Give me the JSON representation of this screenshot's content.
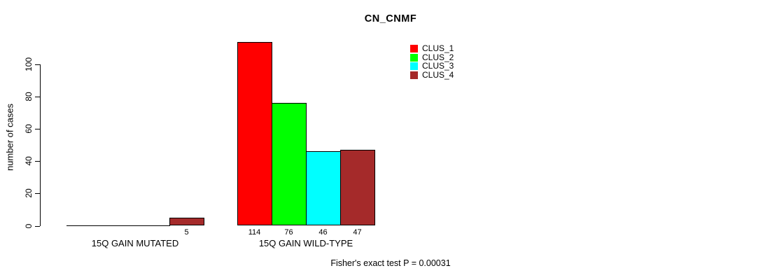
{
  "chart_data": {
    "type": "bar",
    "title": "CN_CNMF",
    "xlabel": "",
    "ylabel": "number of cases",
    "categories": [
      "15Q GAIN MUTATED",
      "15Q GAIN WILD-TYPE"
    ],
    "series": [
      {
        "name": "CLUS_1",
        "color": "#FF0000",
        "values": [
          0,
          114
        ]
      },
      {
        "name": "CLUS_2",
        "color": "#00FF00",
        "values": [
          0,
          76
        ]
      },
      {
        "name": "CLUS_3",
        "color": "#00FFFF",
        "values": [
          0,
          46
        ]
      },
      {
        "name": "CLUS_4",
        "color": "#A52A2A",
        "values": [
          5,
          47
        ]
      }
    ],
    "bar_labels": [
      [
        "",
        "",
        "",
        "5"
      ],
      [
        "114",
        "76",
        "46",
        "47"
      ]
    ],
    "yticks": [
      0,
      20,
      40,
      60,
      80,
      100
    ],
    "ylim": [
      0,
      114
    ],
    "grid": false,
    "legend_position": "top-right",
    "legend_entries": [
      "CLUS_1",
      "CLUS_2",
      "CLUS_3",
      "CLUS_4"
    ],
    "annotation": "Fisher's exact test P = 0.00031"
  }
}
